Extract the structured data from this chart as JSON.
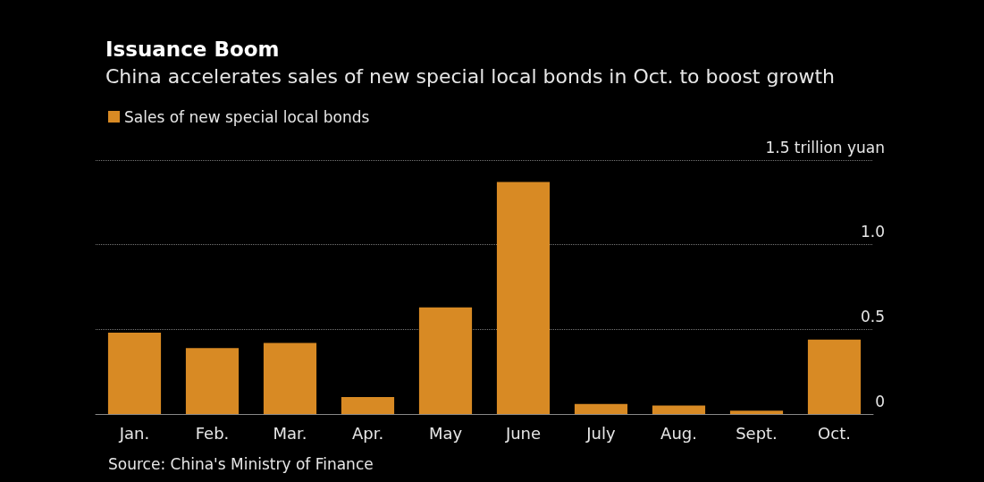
{
  "chart_data": {
    "type": "bar",
    "title": "Issuance Boom",
    "subtitle": "China accelerates sales of new special local bonds in Oct. to boost growth",
    "categories": [
      "Jan.",
      "Feb.",
      "Mar.",
      "Apr.",
      "May",
      "June",
      "July",
      "Aug.",
      "Sept.",
      "Oct."
    ],
    "series": [
      {
        "name": "Sales of new special local bonds",
        "color": "#d88a24",
        "values": [
          0.48,
          0.39,
          0.42,
          0.1,
          0.63,
          1.37,
          0.06,
          0.05,
          0.02,
          0.44
        ]
      }
    ],
    "ylim": [
      0,
      1.5
    ],
    "yticks": [
      0,
      0.5,
      {
        "value": 1,
        "label": "1.0"
      },
      {
        "value": 1.5,
        "label": "1.5 trillion yuan"
      }
    ],
    "grid": "y",
    "legend": "top left",
    "annotations": [
      "Source: China's Ministry of Finance"
    ]
  }
}
